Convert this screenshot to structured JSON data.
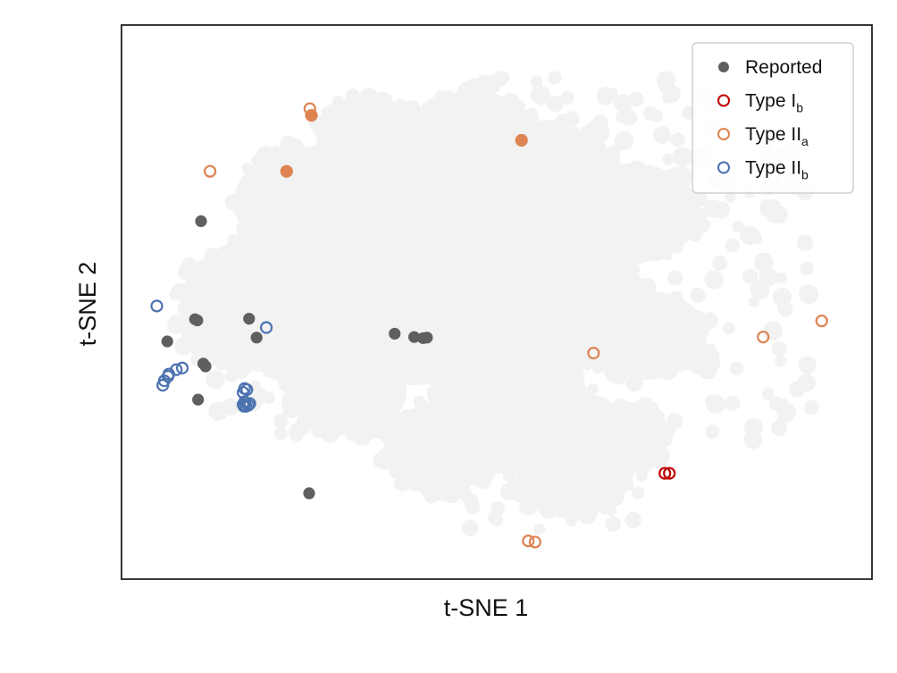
{
  "chart_data": {
    "type": "scatter",
    "xlabel": "t-SNE 1",
    "ylabel": "t-SNE 2",
    "xlim": [
      0,
      100
    ],
    "ylim": [
      0,
      100
    ],
    "ticks_visible": false,
    "grid": false,
    "legend_position": "top-right",
    "background": {
      "name": "",
      "color": "#f2f2f2",
      "blobs": [
        {
          "cx": 38,
          "cy": 56,
          "r": 21
        },
        {
          "cx": 20,
          "cy": 50,
          "r": 12
        },
        {
          "cx": 15,
          "cy": 45,
          "r": 7
        },
        {
          "cx": 25,
          "cy": 68,
          "r": 10
        },
        {
          "cx": 33,
          "cy": 80,
          "r": 7
        },
        {
          "cx": 47,
          "cy": 80,
          "r": 8
        },
        {
          "cx": 56,
          "cy": 72,
          "r": 10
        },
        {
          "cx": 58,
          "cy": 50,
          "r": 12
        },
        {
          "cx": 52,
          "cy": 30,
          "r": 11
        },
        {
          "cx": 60,
          "cy": 18,
          "r": 7
        },
        {
          "cx": 68,
          "cy": 66,
          "r": 9
        },
        {
          "cx": 70,
          "cy": 44,
          "r": 8
        },
        {
          "cx": 67,
          "cy": 26,
          "r": 6
        },
        {
          "cx": 30,
          "cy": 34,
          "r": 8
        },
        {
          "cx": 43,
          "cy": 24,
          "r": 8
        }
      ],
      "scatter_regions": [
        {
          "x": [
            45,
            74
          ],
          "y": [
            80,
            91
          ],
          "n": 26
        },
        {
          "x": [
            72,
            92
          ],
          "y": [
            25,
            78
          ],
          "n": 85
        },
        {
          "x": [
            38,
            70
          ],
          "y": [
            8,
            22
          ],
          "n": 40
        },
        {
          "x": [
            12,
            28
          ],
          "y": [
            26,
            40
          ],
          "n": 24
        },
        {
          "x": [
            62,
            80
          ],
          "y": [
            78,
            88
          ],
          "n": 16
        }
      ]
    },
    "series": [
      {
        "name": "Reported",
        "marker": "filled",
        "color": "#5f5f5f",
        "points": [
          [
            10.6,
            64.6
          ],
          [
            9.8,
            46.9
          ],
          [
            10.1,
            46.7
          ],
          [
            17.0,
            47.0
          ],
          [
            6.1,
            42.9
          ],
          [
            10.9,
            38.9
          ],
          [
            11.2,
            38.4
          ],
          [
            10.2,
            32.4
          ],
          [
            18.0,
            43.6
          ],
          [
            36.4,
            44.3
          ],
          [
            39.0,
            43.7
          ],
          [
            40.2,
            43.5
          ],
          [
            40.7,
            43.6
          ],
          [
            25.0,
            15.5
          ]
        ]
      },
      {
        "name": "Type I",
        "subscript": "b",
        "marker": "open",
        "color": "#c00000",
        "points": [
          [
            72.4,
            19.1
          ],
          [
            73.0,
            19.1
          ]
        ]
      },
      {
        "name": "Type II",
        "subscript": "a",
        "marker": "open",
        "color": "#dd8452",
        "points": [
          [
            25.1,
            84.9
          ],
          [
            25.3,
            83.7
          ],
          [
            11.8,
            73.6
          ],
          [
            53.3,
            79.2
          ],
          [
            22.0,
            73.6
          ],
          [
            62.9,
            40.8
          ],
          [
            85.5,
            43.7
          ],
          [
            93.3,
            46.6
          ],
          [
            54.2,
            6.9
          ],
          [
            55.1,
            6.7
          ]
        ],
        "filled_points": [
          [
            22.0,
            73.6
          ],
          [
            25.3,
            83.7
          ],
          [
            53.3,
            79.2
          ]
        ]
      },
      {
        "name": "Type II",
        "subscript": "b",
        "marker": "open",
        "color": "#4c72b0",
        "points": [
          [
            4.7,
            49.3
          ],
          [
            19.3,
            45.4
          ],
          [
            8.1,
            38.1
          ],
          [
            7.3,
            37.8
          ],
          [
            6.3,
            37.0
          ],
          [
            6.2,
            36.6
          ],
          [
            5.7,
            35.8
          ],
          [
            5.5,
            35.0
          ],
          [
            16.4,
            34.4
          ],
          [
            16.7,
            34.2
          ],
          [
            16.2,
            33.7
          ],
          [
            16.4,
            32.0
          ],
          [
            16.2,
            31.5
          ],
          [
            16.3,
            31.2
          ],
          [
            16.6,
            31.2
          ],
          [
            16.9,
            31.4
          ],
          [
            17.1,
            31.7
          ]
        ]
      }
    ]
  }
}
